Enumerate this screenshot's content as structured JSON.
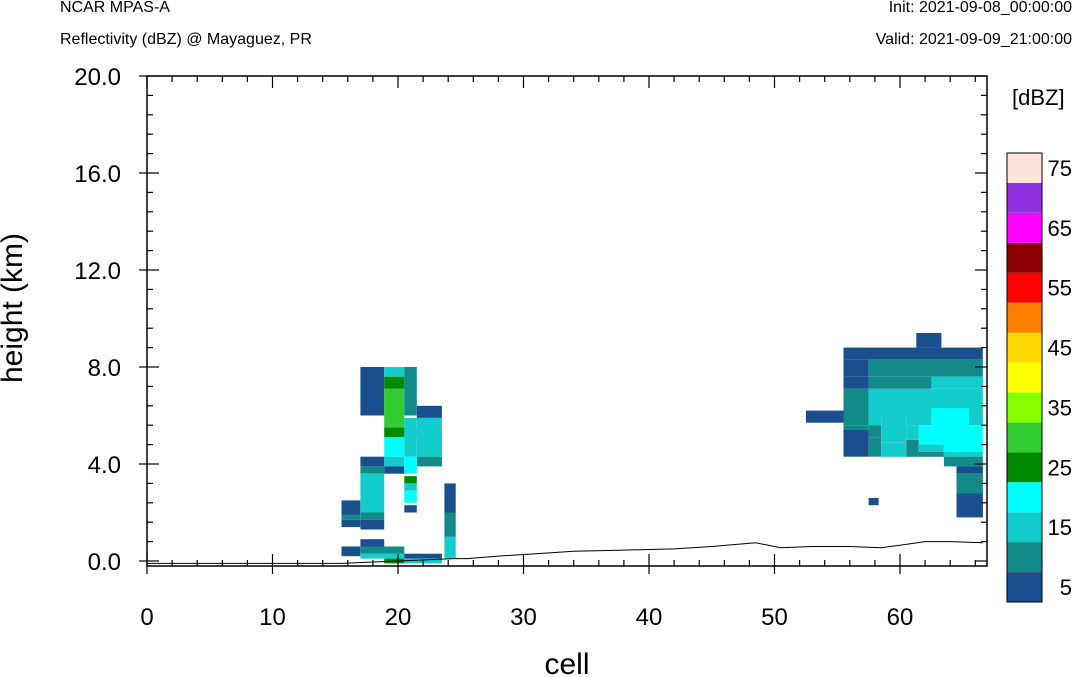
{
  "header": {
    "model": "NCAR MPAS-A",
    "field": "Reflectivity (dBZ) @ Mayaguez, PR",
    "init": "Init: 2021-09-08_00:00:00",
    "valid": "Valid: 2021-09-09_21:00:00"
  },
  "chart_data": {
    "type": "heatmap",
    "title": "Reflectivity (dBZ) @ Mayaguez, PR",
    "xlabel": "cell",
    "ylabel": "height (km)",
    "xlim": [
      0,
      67
    ],
    "ylim": [
      -0.2,
      20.0
    ],
    "x_ticks": [
      0,
      10,
      20,
      30,
      40,
      50,
      60
    ],
    "x_tick_labels": [
      "0",
      "10",
      "20",
      "30",
      "40",
      "50",
      "60"
    ],
    "y_ticks": [
      0,
      4,
      8,
      12,
      16,
      20
    ],
    "y_tick_labels": [
      "0.0",
      "4.0",
      "8.0",
      "12.0",
      "16.0",
      "20.0"
    ],
    "colorbar": {
      "title": "[dBZ]",
      "levels": [
        5,
        10,
        15,
        20,
        25,
        30,
        35,
        40,
        45,
        50,
        55,
        60,
        65,
        70,
        75
      ],
      "labels": [
        "5",
        "15",
        "25",
        "35",
        "45",
        "55",
        "65",
        "75"
      ],
      "colors": [
        "#1a4f8e",
        "#138a8a",
        "#13cccc",
        "#00ffff",
        "#008a00",
        "#33cc33",
        "#88ff00",
        "#ffff00",
        "#ffd700",
        "#ff8000",
        "#ff0000",
        "#8b0000",
        "#ff00ff",
        "#9030e0",
        "#ffe4dc"
      ]
    },
    "cells": [
      {
        "x0": 17,
        "x1": 18.9,
        "y0": 6.0,
        "y1": 8.0,
        "dbz": 5
      },
      {
        "x0": 18.9,
        "x1": 20.5,
        "y0": 7.6,
        "y1": 8.0,
        "dbz": 15
      },
      {
        "x0": 20.5,
        "x1": 21.5,
        "y0": 6.0,
        "y1": 8.0,
        "dbz": 10
      },
      {
        "x0": 18.9,
        "x1": 20.5,
        "y0": 7.1,
        "y1": 7.6,
        "dbz": 25
      },
      {
        "x0": 18.9,
        "x1": 20.5,
        "y0": 5.5,
        "y1": 7.1,
        "dbz": 30
      },
      {
        "x0": 18.9,
        "x1": 20.5,
        "y0": 5.1,
        "y1": 5.5,
        "dbz": 25
      },
      {
        "x0": 20.5,
        "x1": 21.5,
        "y0": 5.1,
        "y1": 5.5,
        "dbz": 5
      },
      {
        "x0": 21.5,
        "x1": 23.5,
        "y0": 5.9,
        "y1": 6.4,
        "dbz": 5
      },
      {
        "x0": 21.5,
        "x1": 23.5,
        "y0": 4.3,
        "y1": 5.9,
        "dbz": 15
      },
      {
        "x0": 20.5,
        "x1": 21.5,
        "y0": 4.3,
        "y1": 5.9,
        "dbz": 15
      },
      {
        "x0": 18.9,
        "x1": 20.5,
        "y0": 4.3,
        "y1": 5.1,
        "dbz": 20
      },
      {
        "x0": 21.5,
        "x1": 23.5,
        "y0": 3.9,
        "y1": 4.3,
        "dbz": 10
      },
      {
        "x0": 18.9,
        "x1": 20.5,
        "y0": 3.9,
        "y1": 4.3,
        "dbz": 15
      },
      {
        "x0": 17,
        "x1": 18.9,
        "y0": 3.9,
        "y1": 4.3,
        "dbz": 5
      },
      {
        "x0": 17,
        "x1": 18.9,
        "y0": 3.6,
        "y1": 3.9,
        "dbz": 10
      },
      {
        "x0": 18.9,
        "x1": 20.5,
        "y0": 3.6,
        "y1": 3.9,
        "dbz": 5
      },
      {
        "x0": 20.5,
        "x1": 21.5,
        "y0": 3.6,
        "y1": 4.3,
        "dbz": 20
      },
      {
        "x0": 20.5,
        "x1": 21.5,
        "y0": 3.2,
        "y1": 3.5,
        "dbz": 25
      },
      {
        "x0": 20.5,
        "x1": 21.5,
        "y0": 2.9,
        "y1": 3.2,
        "dbz": 15
      },
      {
        "x0": 20.5,
        "x1": 21.5,
        "y0": 2.4,
        "y1": 2.9,
        "dbz": 20
      },
      {
        "x0": 20.5,
        "x1": 21.5,
        "y0": 2.0,
        "y1": 2.3,
        "dbz": 5
      },
      {
        "x0": 17,
        "x1": 18.9,
        "y0": 2.0,
        "y1": 3.6,
        "dbz": 15
      },
      {
        "x0": 15.5,
        "x1": 17,
        "y0": 1.9,
        "y1": 2.5,
        "dbz": 5
      },
      {
        "x0": 15.5,
        "x1": 17,
        "y0": 1.7,
        "y1": 1.9,
        "dbz": 10
      },
      {
        "x0": 17,
        "x1": 18.9,
        "y0": 1.7,
        "y1": 2.0,
        "dbz": 10
      },
      {
        "x0": 15.5,
        "x1": 17,
        "y0": 1.4,
        "y1": 1.7,
        "dbz": 5
      },
      {
        "x0": 17,
        "x1": 18.9,
        "y0": 1.3,
        "y1": 1.7,
        "dbz": 5
      },
      {
        "x0": 23.7,
        "x1": 24.6,
        "y0": 2.0,
        "y1": 3.2,
        "dbz": 5
      },
      {
        "x0": 23.7,
        "x1": 24.6,
        "y0": 1.0,
        "y1": 2.0,
        "dbz": 10
      },
      {
        "x0": 23.7,
        "x1": 24.6,
        "y0": 0.1,
        "y1": 1.0,
        "dbz": 15
      },
      {
        "x0": 17,
        "x1": 18.9,
        "y0": 0.6,
        "y1": 0.9,
        "dbz": 5
      },
      {
        "x0": 17,
        "x1": 20.5,
        "y0": 0.3,
        "y1": 0.6,
        "dbz": 10
      },
      {
        "x0": 15.5,
        "x1": 17,
        "y0": 0.2,
        "y1": 0.6,
        "dbz": 5
      },
      {
        "x0": 17,
        "x1": 20.5,
        "y0": 0.1,
        "y1": 0.3,
        "dbz": 15
      },
      {
        "x0": 18.9,
        "x1": 20.5,
        "y0": -0.1,
        "y1": 0.1,
        "dbz": 25
      },
      {
        "x0": 20.5,
        "x1": 23.5,
        "y0": 0.1,
        "y1": 0.3,
        "dbz": 5
      },
      {
        "x0": 20.5,
        "x1": 23.5,
        "y0": -0.1,
        "y1": 0.1,
        "dbz": 15
      },
      {
        "x0": 55.5,
        "x1": 66.6,
        "y0": 8.3,
        "y1": 8.8,
        "dbz": 5
      },
      {
        "x0": 61.3,
        "x1": 63.3,
        "y0": 8.8,
        "y1": 9.4,
        "dbz": 5
      },
      {
        "x0": 55.5,
        "x1": 57.5,
        "y0": 7.6,
        "y1": 8.3,
        "dbz": 5
      },
      {
        "x0": 57.5,
        "x1": 66.6,
        "y0": 7.6,
        "y1": 8.3,
        "dbz": 10
      },
      {
        "x0": 55.5,
        "x1": 57.5,
        "y0": 7.1,
        "y1": 7.6,
        "dbz": 5
      },
      {
        "x0": 57.5,
        "x1": 62.5,
        "y0": 7.1,
        "y1": 7.6,
        "dbz": 10
      },
      {
        "x0": 62.5,
        "x1": 66.6,
        "y0": 7.1,
        "y1": 7.6,
        "dbz": 15
      },
      {
        "x0": 55.5,
        "x1": 57.5,
        "y0": 6.0,
        "y1": 7.1,
        "dbz": 10
      },
      {
        "x0": 57.5,
        "x1": 66.6,
        "y0": 6.0,
        "y1": 7.1,
        "dbz": 15
      },
      {
        "x0": 52.5,
        "x1": 55.5,
        "y0": 5.7,
        "y1": 6.2,
        "dbz": 5
      },
      {
        "x0": 55.5,
        "x1": 57.5,
        "y0": 5.6,
        "y1": 6.0,
        "dbz": 10
      },
      {
        "x0": 57.5,
        "x1": 58.5,
        "y0": 5.6,
        "y1": 6.0,
        "dbz": 15
      },
      {
        "x0": 58.5,
        "x1": 60.5,
        "y0": 5.4,
        "y1": 6.0,
        "dbz": 15
      },
      {
        "x0": 60.5,
        "x1": 62.5,
        "y0": 5.6,
        "y1": 6.0,
        "dbz": 15
      },
      {
        "x0": 62.5,
        "x1": 65.5,
        "y0": 5.6,
        "y1": 6.3,
        "dbz": 20
      },
      {
        "x0": 65.5,
        "x1": 66.6,
        "y0": 5.6,
        "y1": 6.0,
        "dbz": 15
      },
      {
        "x0": 55.5,
        "x1": 57.5,
        "y0": 5.4,
        "y1": 5.6,
        "dbz": 10
      },
      {
        "x0": 57.5,
        "x1": 58.5,
        "y0": 5.1,
        "y1": 5.6,
        "dbz": 10
      },
      {
        "x0": 58.5,
        "x1": 60.5,
        "y0": 4.9,
        "y1": 5.4,
        "dbz": 15
      },
      {
        "x0": 60.5,
        "x1": 61.5,
        "y0": 5.0,
        "y1": 5.6,
        "dbz": 15
      },
      {
        "x0": 61.5,
        "x1": 66.6,
        "y0": 4.8,
        "y1": 5.6,
        "dbz": 20
      },
      {
        "x0": 55.5,
        "x1": 57.5,
        "y0": 4.3,
        "y1": 5.4,
        "dbz": 5
      },
      {
        "x0": 57.5,
        "x1": 58.5,
        "y0": 4.3,
        "y1": 5.1,
        "dbz": 10
      },
      {
        "x0": 58.5,
        "x1": 60.5,
        "y0": 4.3,
        "y1": 4.9,
        "dbz": 15
      },
      {
        "x0": 60.5,
        "x1": 61.5,
        "y0": 4.3,
        "y1": 5.0,
        "dbz": 10
      },
      {
        "x0": 61.5,
        "x1": 63.5,
        "y0": 4.5,
        "y1": 4.8,
        "dbz": 15
      },
      {
        "x0": 63.5,
        "x1": 66.6,
        "y0": 4.5,
        "y1": 4.8,
        "dbz": 20
      },
      {
        "x0": 61.5,
        "x1": 63.5,
        "y0": 4.3,
        "y1": 4.5,
        "dbz": 10
      },
      {
        "x0": 63.5,
        "x1": 66.6,
        "y0": 4.3,
        "y1": 4.5,
        "dbz": 15
      },
      {
        "x0": 63.5,
        "x1": 66.6,
        "y0": 3.9,
        "y1": 4.3,
        "dbz": 10
      },
      {
        "x0": 64.5,
        "x1": 66.6,
        "y0": 3.6,
        "y1": 3.9,
        "dbz": 5
      },
      {
        "x0": 64.5,
        "x1": 66.6,
        "y0": 2.8,
        "y1": 3.6,
        "dbz": 10
      },
      {
        "x0": 64.5,
        "x1": 66.6,
        "y0": 1.8,
        "y1": 2.8,
        "dbz": 5
      },
      {
        "x0": 57.5,
        "x1": 58.3,
        "y0": 2.3,
        "y1": 2.6,
        "dbz": 5
      }
    ],
    "terrain": {
      "x": [
        0,
        15.5,
        24.5,
        25.5,
        28,
        31,
        34,
        38,
        42,
        45,
        48.5,
        50.5,
        53,
        56,
        58.5,
        60,
        62,
        64,
        66.6
      ],
      "y": [
        -0.1,
        -0.1,
        0.1,
        0.1,
        0.2,
        0.3,
        0.4,
        0.45,
        0.5,
        0.6,
        0.75,
        0.55,
        0.6,
        0.6,
        0.55,
        0.65,
        0.8,
        0.8,
        0.75
      ]
    }
  }
}
